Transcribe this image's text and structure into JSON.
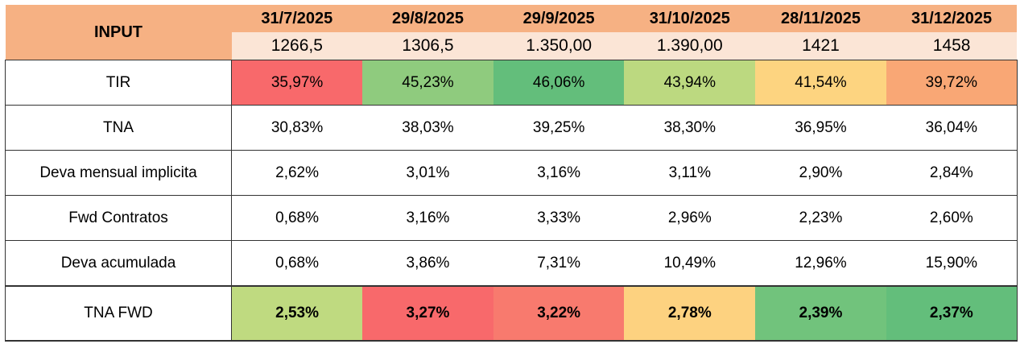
{
  "header": {
    "label": "INPUT",
    "dates": [
      "31/7/2025",
      "29/8/2025",
      "29/9/2025",
      "31/10/2025",
      "28/11/2025",
      "31/12/2025"
    ],
    "inputs": [
      "1266,5",
      "1306,5",
      "1.350,00",
      "1.390,00",
      "1421",
      "1458"
    ]
  },
  "rows": [
    {
      "label": "TIR",
      "values": [
        "35,97%",
        "45,23%",
        "46,06%",
        "43,94%",
        "41,54%",
        "39,72%"
      ],
      "colors": [
        "#f8696b",
        "#8fcb7e",
        "#63be7b",
        "#bcd980",
        "#fdd480",
        "#f9a775"
      ]
    },
    {
      "label": "TNA",
      "values": [
        "30,83%",
        "38,03%",
        "39,25%",
        "38,30%",
        "36,95%",
        "36,04%"
      ]
    },
    {
      "label": "Deva mensual implicita",
      "values": [
        "2,62%",
        "3,01%",
        "3,16%",
        "3,11%",
        "2,90%",
        "2,84%"
      ]
    },
    {
      "label": "Fwd Contratos",
      "values": [
        "0,68%",
        "3,16%",
        "3,33%",
        "2,96%",
        "2,23%",
        "2,60%"
      ]
    },
    {
      "label": "Deva acumulada",
      "values": [
        "0,68%",
        "3,86%",
        "7,31%",
        "10,49%",
        "12,96%",
        "15,90%"
      ]
    },
    {
      "label": "TNA FWD",
      "values": [
        "2,53%",
        "3,27%",
        "3,22%",
        "2,78%",
        "2,39%",
        "2,37%"
      ],
      "colors": [
        "#bfda80",
        "#f8696b",
        "#f87a6e",
        "#fdd280",
        "#71c37c",
        "#63be7b"
      ]
    }
  ]
}
